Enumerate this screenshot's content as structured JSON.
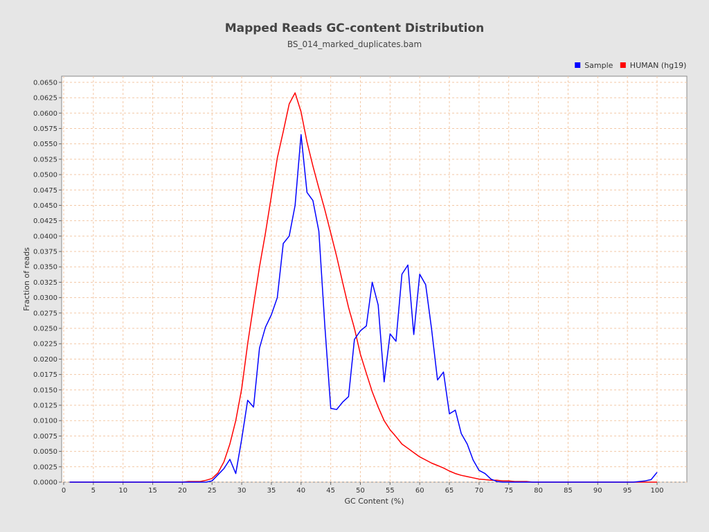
{
  "chart_data": {
    "type": "line",
    "title": "Mapped Reads GC-content Distribution",
    "subtitle": "BS_014_marked_duplicates.bam",
    "xlabel": "GC Content (%)",
    "ylabel": "Fraction of reads",
    "xlim": [
      0,
      105
    ],
    "ylim": [
      0,
      0.066
    ],
    "xticks": [
      0,
      5,
      10,
      15,
      20,
      25,
      30,
      35,
      40,
      45,
      50,
      55,
      60,
      65,
      70,
      75,
      80,
      85,
      90,
      95,
      100
    ],
    "yticks": [
      0.0,
      0.0025,
      0.005,
      0.0075,
      0.01,
      0.0125,
      0.015,
      0.0175,
      0.02,
      0.0225,
      0.025,
      0.0275,
      0.03,
      0.0325,
      0.035,
      0.0375,
      0.04,
      0.0425,
      0.045,
      0.0475,
      0.05,
      0.0525,
      0.055,
      0.0575,
      0.06,
      0.0625,
      0.065
    ],
    "grid": true,
    "legend_position": "top-right",
    "series": [
      {
        "name": "Sample",
        "color": "#0000ff",
        "x": [
          1,
          2,
          3,
          4,
          5,
          6,
          7,
          8,
          9,
          10,
          11,
          12,
          13,
          14,
          15,
          16,
          17,
          18,
          19,
          20,
          21,
          22,
          23,
          24,
          25,
          26,
          27,
          28,
          29,
          30,
          31,
          32,
          33,
          34,
          35,
          36,
          37,
          38,
          39,
          40,
          41,
          42,
          43,
          44,
          45,
          46,
          47,
          48,
          49,
          50,
          51,
          52,
          53,
          54,
          55,
          56,
          57,
          58,
          59,
          60,
          61,
          62,
          63,
          64,
          65,
          66,
          67,
          68,
          69,
          70,
          71,
          72,
          73,
          74,
          75,
          76,
          77,
          78,
          79,
          80,
          81,
          82,
          83,
          84,
          85,
          86,
          87,
          88,
          89,
          90,
          91,
          92,
          93,
          94,
          95,
          96,
          97,
          98,
          99,
          100
        ],
        "y": [
          0,
          0,
          0,
          0,
          0,
          0,
          0,
          0,
          0,
          0,
          0,
          0,
          0,
          0,
          0,
          0,
          0,
          0,
          0,
          0,
          0,
          0,
          0,
          0,
          0.0002,
          0.0012,
          0.0022,
          0.0037,
          0.0014,
          0.007,
          0.0133,
          0.0122,
          0.0218,
          0.0252,
          0.0272,
          0.03,
          0.0388,
          0.04,
          0.045,
          0.0565,
          0.0471,
          0.0458,
          0.0408,
          0.0255,
          0.012,
          0.0118,
          0.013,
          0.0139,
          0.0232,
          0.0246,
          0.0254,
          0.0325,
          0.0288,
          0.0163,
          0.0241,
          0.0229,
          0.0338,
          0.0353,
          0.024,
          0.0338,
          0.0321,
          0.0249,
          0.0166,
          0.0179,
          0.0111,
          0.0117,
          0.0079,
          0.0062,
          0.0036,
          0.0019,
          0.0014,
          0.0005,
          0.0001,
          0,
          0,
          0,
          0,
          0,
          0,
          0,
          0,
          0,
          0,
          0,
          0,
          0,
          0,
          0,
          0,
          0,
          0,
          0,
          0,
          0,
          0,
          0,
          0.0001,
          0.0002,
          0.0004,
          0.0016
        ]
      },
      {
        "name": "HUMAN (hg19)",
        "color": "#ff0000",
        "x": [
          1,
          2,
          3,
          4,
          5,
          6,
          7,
          8,
          9,
          10,
          11,
          12,
          13,
          14,
          15,
          16,
          17,
          18,
          19,
          20,
          21,
          22,
          23,
          24,
          25,
          26,
          27,
          28,
          29,
          30,
          31,
          32,
          33,
          34,
          35,
          36,
          37,
          38,
          39,
          40,
          41,
          42,
          43,
          44,
          45,
          46,
          47,
          48,
          49,
          50,
          51,
          52,
          53,
          54,
          55,
          56,
          57,
          58,
          59,
          60,
          61,
          62,
          63,
          64,
          65,
          66,
          67,
          68,
          69,
          70,
          71,
          72,
          73,
          74,
          75,
          76,
          77,
          78,
          79,
          80,
          81,
          82,
          83,
          84,
          85,
          86,
          87,
          88,
          89,
          90,
          91,
          92,
          93,
          94,
          95,
          96,
          97,
          98,
          99,
          100
        ],
        "y": [
          0,
          0,
          0,
          0,
          0,
          0,
          0,
          0,
          0,
          0,
          0,
          0,
          0,
          0,
          0,
          0,
          0,
          0,
          0,
          0,
          0.0001,
          0.0001,
          0.0001,
          0.0003,
          0.0006,
          0.0015,
          0.0033,
          0.0062,
          0.01,
          0.0152,
          0.0225,
          0.0288,
          0.035,
          0.0405,
          0.0465,
          0.0527,
          0.057,
          0.0615,
          0.0633,
          0.0602,
          0.0553,
          0.0514,
          0.0478,
          0.0443,
          0.0405,
          0.0367,
          0.0325,
          0.0284,
          0.025,
          0.0208,
          0.0177,
          0.0147,
          0.0122,
          0.01,
          0.0085,
          0.0074,
          0.0062,
          0.0055,
          0.0048,
          0.0041,
          0.0036,
          0.0031,
          0.0027,
          0.0023,
          0.0018,
          0.0014,
          0.0011,
          0.0009,
          0.0007,
          0.0005,
          0.0004,
          0.0003,
          0.0003,
          0.0002,
          0.0002,
          0.0001,
          0.0001,
          0.0001,
          0,
          0,
          0,
          0,
          0,
          0,
          0,
          0,
          0,
          0,
          0,
          0,
          0,
          0,
          0,
          0,
          0,
          0,
          0,
          0,
          0,
          0
        ]
      }
    ]
  }
}
